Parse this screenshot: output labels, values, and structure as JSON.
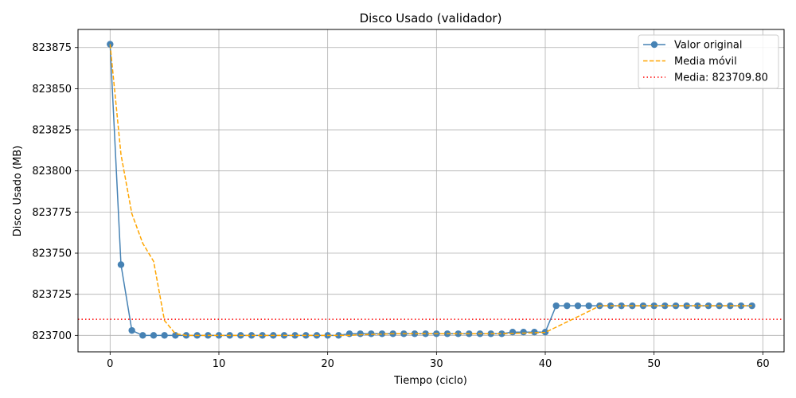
{
  "chart_data": {
    "type": "line",
    "title": "Disco Usado (validador)",
    "xlabel": "Tiempo (ciclo)",
    "ylabel": "Disco Usado (MB)",
    "xlim": [
      -2.95,
      61.95
    ],
    "ylim": [
      823690.0,
      823886.0
    ],
    "x_ticks": [
      0,
      10,
      20,
      30,
      40,
      50,
      60
    ],
    "y_ticks": [
      823700,
      823725,
      823750,
      823775,
      823800,
      823825,
      823850,
      823875
    ],
    "grid": true,
    "legend_position": "top-right",
    "mean": 823709.8,
    "series": [
      {
        "name": "Valor original",
        "color": "#4682b4",
        "style": "solid-marker",
        "x": [
          0,
          1,
          2,
          3,
          4,
          5,
          6,
          7,
          8,
          9,
          10,
          11,
          12,
          13,
          14,
          15,
          16,
          17,
          18,
          19,
          20,
          21,
          22,
          23,
          24,
          25,
          26,
          27,
          28,
          29,
          30,
          31,
          32,
          33,
          34,
          35,
          36,
          37,
          38,
          39,
          40,
          41,
          42,
          43,
          44,
          45,
          46,
          47,
          48,
          49,
          50,
          51,
          52,
          53,
          54,
          55,
          56,
          57,
          58,
          59
        ],
        "values": [
          823877,
          823743,
          823703,
          823700,
          823700,
          823700,
          823700,
          823700,
          823700,
          823700,
          823700,
          823700,
          823700,
          823700,
          823700,
          823700,
          823700,
          823700,
          823700,
          823700,
          823700,
          823700,
          823701,
          823701,
          823701,
          823701,
          823701,
          823701,
          823701,
          823701,
          823701,
          823701,
          823701,
          823701,
          823701,
          823701,
          823701,
          823702,
          823702,
          823702,
          823702,
          823718,
          823718,
          823718,
          823718,
          823718,
          823718,
          823718,
          823718,
          823718,
          823718,
          823718,
          823718,
          823718,
          823718,
          823718,
          823718,
          823718,
          823718,
          823718
        ]
      },
      {
        "name": "Media móvil",
        "color": "#ffa500",
        "style": "dashed",
        "x": [
          0,
          1,
          2,
          3,
          4,
          5,
          6,
          7,
          8,
          9,
          10,
          11,
          12,
          13,
          14,
          15,
          16,
          17,
          18,
          19,
          20,
          21,
          22,
          23,
          24,
          25,
          26,
          27,
          28,
          29,
          30,
          31,
          32,
          33,
          34,
          35,
          36,
          37,
          38,
          39,
          40,
          41,
          42,
          43,
          44,
          45,
          46,
          47,
          48,
          49,
          50,
          51,
          52,
          53,
          54,
          55,
          56,
          57,
          58,
          59
        ],
        "values": [
          823877,
          823810,
          823774,
          823756,
          823745,
          823709,
          823701,
          823700,
          823700,
          823700,
          823700,
          823700,
          823700,
          823700,
          823700,
          823700,
          823700,
          823700,
          823700,
          823700,
          823700,
          823700,
          823700,
          823700.4,
          823700.6,
          823700.8,
          823701,
          823701,
          823701,
          823701,
          823701,
          823701,
          823701,
          823701,
          823701,
          823701,
          823701,
          823701.2,
          823701.4,
          823701.6,
          823701.8,
          823705,
          823708.2,
          823711.4,
          823714.6,
          823718,
          823718,
          823718,
          823718,
          823718,
          823718,
          823718,
          823718,
          823718,
          823718,
          823718,
          823718,
          823718,
          823718,
          823718
        ]
      }
    ],
    "legend": [
      {
        "label": "Valor original",
        "color": "#4682b4",
        "style": "solid-marker"
      },
      {
        "label": "Media móvil",
        "color": "#ffa500",
        "style": "dashed"
      },
      {
        "label": "Media: 823709.80",
        "color": "#ff0000",
        "style": "dotted"
      }
    ]
  }
}
